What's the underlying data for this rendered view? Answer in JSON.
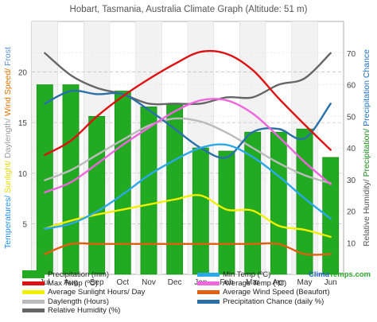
{
  "chart_data": {
    "type": "bar",
    "title": "Hobart, Tasmania, Australia Climate Graph (Altitude: 51 m)",
    "categories": [
      "Jul",
      "Aug",
      "Sep",
      "Oct",
      "Nov",
      "Dec",
      "Jan",
      "Feb",
      "Mar",
      "Apr",
      "May",
      "Jun"
    ],
    "left_axis": {
      "label_parts": [
        {
          "text": "Temperatures/",
          "color": "#1e90ff"
        },
        {
          "text": " Sunlight/",
          "color": "#e6d800"
        },
        {
          "text": " Daylength/",
          "color": "#9a9a9a"
        },
        {
          "text": " Wind Speed/",
          "color": "#e07000"
        },
        {
          "text": " Frost",
          "color": "#5a8fd0"
        }
      ],
      "ticks": [
        5,
        10,
        15,
        20
      ],
      "ylim": [
        0,
        25
      ]
    },
    "right_axis": {
      "label_parts": [
        {
          "text": "Relative Humidity/",
          "color": "#555555"
        },
        {
          "text": " Precipitation/",
          "color": "#1f8b1f"
        },
        {
          "text": " Precipitation Chance",
          "color": "#1f6fc0"
        }
      ],
      "ticks": [
        10,
        20,
        30,
        40,
        50,
        60,
        70
      ],
      "ylim": [
        0,
        80
      ]
    },
    "series": [
      {
        "name": "Precipitation (mm)",
        "axis": "right",
        "kind": "bar",
        "color": "#22aa22",
        "values": [
          60,
          60,
          50,
          58,
          53,
          54,
          40,
          39,
          45,
          45,
          46,
          37
        ]
      },
      {
        "name": "Min Temp (ºC)",
        "axis": "left",
        "kind": "line",
        "color": "#2aa8e8",
        "values": [
          4.5,
          5,
          6.2,
          7.9,
          9.8,
          11.3,
          12.5,
          12.8,
          11.6,
          9.7,
          7.5,
          5.5
        ]
      },
      {
        "name": "Max Temp (ºC)",
        "axis": "left",
        "kind": "line",
        "color": "#dd1111",
        "values": [
          11.8,
          13.2,
          15.6,
          17.6,
          19.3,
          20.8,
          22,
          21.8,
          20.2,
          17.4,
          14.8,
          12.3
        ]
      },
      {
        "name": "Average Temp (ºC)",
        "axis": "left",
        "kind": "line",
        "color": "#ee66dd",
        "values": [
          8.1,
          9.1,
          10.9,
          12.8,
          14.5,
          16.1,
          17.2,
          17.2,
          15.9,
          13.6,
          11.1,
          8.9
        ]
      },
      {
        "name": "Average Sunlight Hours/ Day",
        "axis": "left",
        "kind": "line",
        "color": "#f0f000",
        "values": [
          4.5,
          5.3,
          5.9,
          6.4,
          6.9,
          7.4,
          7.8,
          6.4,
          6.3,
          4.8,
          4.4,
          3.7
        ]
      },
      {
        "name": "Average Wind Speed (Beaufort)",
        "axis": "left",
        "kind": "line",
        "color": "#e06010",
        "values": [
          2,
          3,
          3,
          3,
          3,
          3,
          3,
          3,
          3,
          3,
          2,
          2
        ]
      },
      {
        "name": "Daylength (Hours)",
        "axis": "left",
        "kind": "line",
        "color": "#bbbbbb",
        "values": [
          9.3,
          10.3,
          11.8,
          13.3,
          14.7,
          15.4,
          15.1,
          14,
          12.5,
          11,
          9.8,
          9
        ]
      },
      {
        "name": "Precipitation Chance (daily %)",
        "axis": "right",
        "kind": "line",
        "color": "#2a6fa8",
        "values": [
          54,
          58,
          57,
          57,
          52,
          46,
          40,
          37,
          45,
          46,
          43,
          54
        ]
      },
      {
        "name": "Relative Humidity (%)",
        "axis": "right",
        "kind": "line",
        "color": "#666666",
        "values": [
          70,
          63,
          59,
          57,
          54,
          54,
          54,
          56,
          56,
          60,
          62,
          70
        ]
      }
    ],
    "grid": true,
    "legend": "bottom"
  },
  "brand": {
    "text": "ClimaTemps.com",
    "color_a": "#1e5fbf",
    "color_b": "#2aa52a"
  }
}
